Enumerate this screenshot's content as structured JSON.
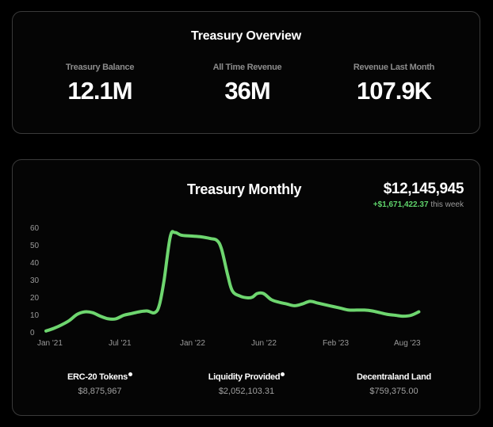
{
  "overview": {
    "title": "Treasury Overview",
    "stats": [
      {
        "label": "Treasury Balance",
        "value": "12.1M"
      },
      {
        "label": "All Time Revenue",
        "value": "36M"
      },
      {
        "label": "Revenue Last Month",
        "value": "107.9K"
      }
    ]
  },
  "monthly": {
    "title": "Treasury Monthly",
    "total": "$12,145,945",
    "change": "+$1,671,422.37",
    "change_period": "this week",
    "breakdown": [
      {
        "label": "ERC-20 Tokens",
        "value": "$8,875,967",
        "icon": "info-icon"
      },
      {
        "label": "Liquidity Provided",
        "value": "$2,052,103.31",
        "icon": "info-icon"
      },
      {
        "label": "Decentraland Land",
        "value": "$759,375.00"
      }
    ]
  },
  "colors": {
    "line": "#6ed66f",
    "change": "#5fd36b",
    "background": "#000000",
    "card_border": "#3a3a3a"
  },
  "chart_data": {
    "type": "line",
    "title": "Treasury Monthly",
    "xlabel": "",
    "ylabel": "",
    "ylim": [
      0,
      60
    ],
    "yticks": [
      0,
      10,
      20,
      30,
      40,
      50,
      60
    ],
    "xticks": [
      "Jan '21",
      "Jul '21",
      "Jan '22",
      "Jun '22",
      "Feb '23",
      "Aug '23"
    ],
    "grid": false,
    "series": [
      {
        "points": [
          [
            0.0,
            1.0
          ],
          [
            0.5,
            2.5
          ],
          [
            1.0,
            4.5
          ],
          [
            1.5,
            7.0
          ],
          [
            2.0,
            10.5
          ],
          [
            2.5,
            12.0
          ],
          [
            3.0,
            11.5
          ],
          [
            3.5,
            9.5
          ],
          [
            4.0,
            8.0
          ],
          [
            4.5,
            8.0
          ],
          [
            5.0,
            10.0
          ],
          [
            5.5,
            11.0
          ],
          [
            6.0,
            12.0
          ],
          [
            6.5,
            12.5
          ],
          [
            7.0,
            11.5
          ],
          [
            7.3,
            16.0
          ],
          [
            7.6,
            30.0
          ],
          [
            8.0,
            55.0
          ],
          [
            8.3,
            57.5
          ],
          [
            8.7,
            56.0
          ],
          [
            9.3,
            55.5
          ],
          [
            10.0,
            55.0
          ],
          [
            10.6,
            54.0
          ],
          [
            11.0,
            53.0
          ],
          [
            11.3,
            48.0
          ],
          [
            11.7,
            33.0
          ],
          [
            12.0,
            24.0
          ],
          [
            12.5,
            21.0
          ],
          [
            13.0,
            20.0
          ],
          [
            13.3,
            20.5
          ],
          [
            13.6,
            22.5
          ],
          [
            14.0,
            22.5
          ],
          [
            14.5,
            19.0
          ],
          [
            15.0,
            17.5
          ],
          [
            15.5,
            16.5
          ],
          [
            16.0,
            15.5
          ],
          [
            16.5,
            16.5
          ],
          [
            17.0,
            18.0
          ],
          [
            17.5,
            17.0
          ],
          [
            18.0,
            16.0
          ],
          [
            18.5,
            15.0
          ],
          [
            19.0,
            14.0
          ],
          [
            19.5,
            13.0
          ],
          [
            20.0,
            13.0
          ],
          [
            20.5,
            13.0
          ],
          [
            21.0,
            12.5
          ],
          [
            21.5,
            11.5
          ],
          [
            22.0,
            10.5
          ],
          [
            22.5,
            10.0
          ],
          [
            23.0,
            9.5
          ],
          [
            23.5,
            10.0
          ],
          [
            24.0,
            12.0
          ]
        ]
      }
    ]
  }
}
